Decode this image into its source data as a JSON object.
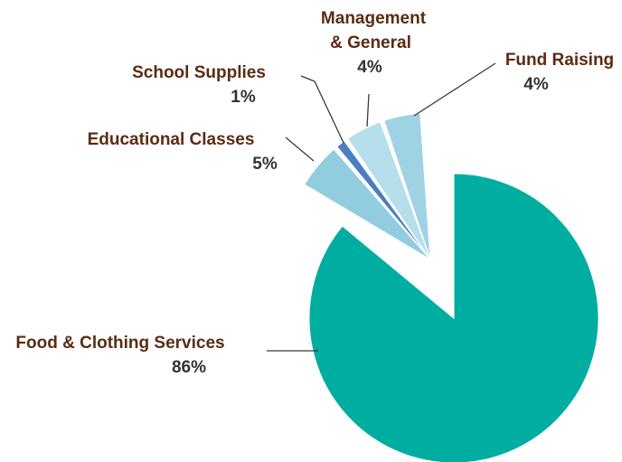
{
  "chart_data": {
    "type": "pie",
    "title": "",
    "label_color": "#5a2c12",
    "slices": [
      {
        "name": "Food & Clothing Services",
        "value": 86,
        "label": "86%",
        "color": "#00ada1"
      },
      {
        "name": "Educational Classes",
        "value": 5,
        "label": "5%",
        "color": "#92cddf"
      },
      {
        "name": "School Supplies",
        "value": 1,
        "label": "1%",
        "color": "#4a7fc0"
      },
      {
        "name": "Management & General",
        "value": 4,
        "label": "4%",
        "color": "#b5dfea"
      },
      {
        "name": "Fund Raising",
        "value": 4,
        "label": "4%",
        "color": "#9fd3e3"
      }
    ]
  }
}
